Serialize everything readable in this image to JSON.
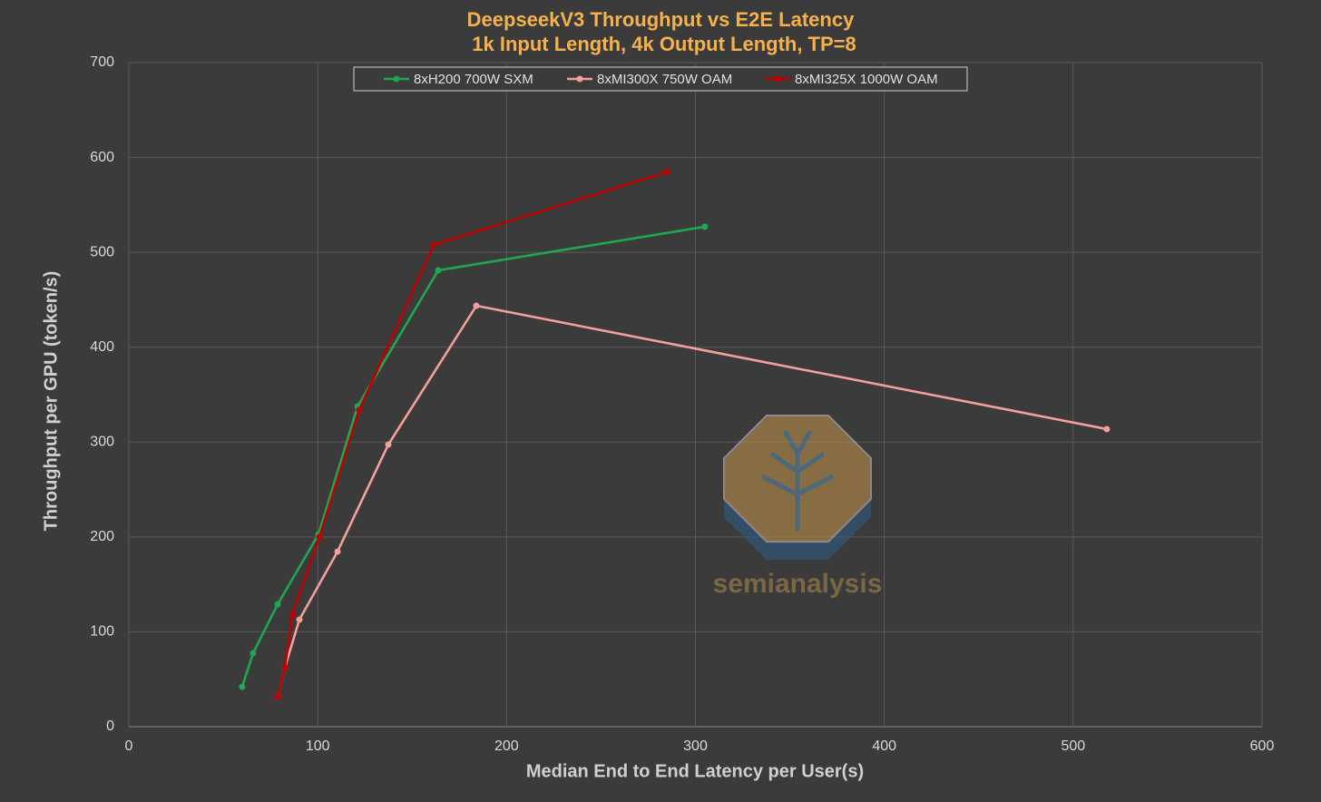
{
  "chart_data": {
    "type": "line",
    "title": [
      "DeepseekV3 Throughput vs E2E Latency",
      "1k Input Length, 4k Output Length, TP=8"
    ],
    "x_label": "Median End to End Latency per User(s)",
    "y_label": "Throughput per GPU (token/s)",
    "xlim": [
      0,
      600
    ],
    "xticks": [
      0,
      100,
      200,
      300,
      400,
      500,
      600
    ],
    "ylim": [
      0,
      700
    ],
    "yticks": [
      0,
      100,
      200,
      300,
      400,
      500,
      600,
      700
    ],
    "grid": true,
    "legend": "top",
    "watermark": "semianalysis",
    "series": [
      {
        "name": "8xH200 700W SXM",
        "color": "#1fa84f",
        "x": [
          60.0,
          65.8,
          78.8,
          100.4,
          121.1,
          163.8,
          305.0
        ],
        "values": [
          42,
          77.5,
          129,
          202.7,
          337.6,
          481,
          527
        ]
      },
      {
        "name": "8xMI300X 750W OAM",
        "color": "#f4a09a",
        "x": [
          78.8,
          82.6,
          90.3,
          110.5,
          137.4,
          184.0,
          517.8
        ],
        "values": [
          31.6,
          62.2,
          112.8,
          184.6,
          297.4,
          443.7,
          313.7
        ]
      },
      {
        "name": "8xMI325X 1000W OAM",
        "color": "#c00000",
        "x": [
          78.8,
          82.6,
          86.5,
          100.9,
          122.0,
          161.4,
          284.9
        ],
        "values": [
          31.6,
          62.2,
          117.6,
          199.9,
          333.7,
          507.8,
          584.7
        ]
      }
    ]
  }
}
